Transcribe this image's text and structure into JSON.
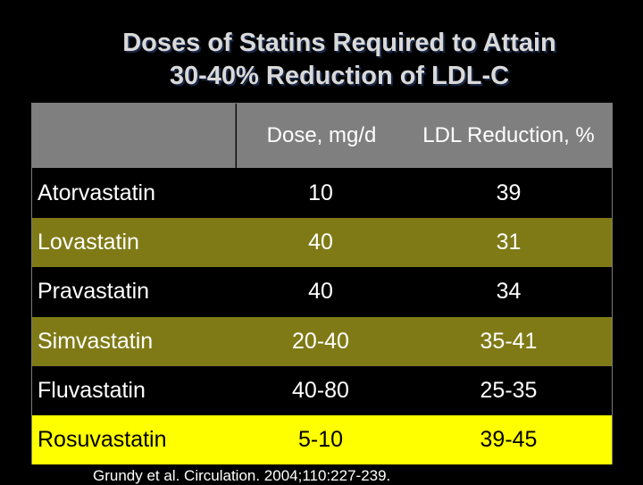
{
  "title": {
    "line1": "Doses of Statins Required to Attain",
    "line2": "30-40% Reduction of LDL-C"
  },
  "table": {
    "headers": [
      "",
      "Dose, mg/d",
      "LDL Reduction, %"
    ],
    "rows": [
      {
        "drug": "Atorvastatin",
        "dose": "10",
        "reduction": "39",
        "band": "dark"
      },
      {
        "drug": "Lovastatin",
        "dose": "40",
        "reduction": "31",
        "band": "olive"
      },
      {
        "drug": "Pravastatin",
        "dose": "40",
        "reduction": "34",
        "band": "dark"
      },
      {
        "drug": "Simvastatin",
        "dose": "20-40",
        "reduction": "35-41",
        "band": "olive"
      },
      {
        "drug": "Fluvastatin",
        "dose": "40-80",
        "reduction": "25-35",
        "band": "dark"
      },
      {
        "drug": "Rosuvastatin",
        "dose": "5-10",
        "reduction": "39-45",
        "band": "yellow"
      }
    ]
  },
  "citation": "Grundy et al. Circulation. 2004;110:227-239.",
  "colors": {
    "background": "#000000",
    "header": "#7f7f7f",
    "olive_band": "#7f7a16",
    "highlight": "#ffff00"
  }
}
